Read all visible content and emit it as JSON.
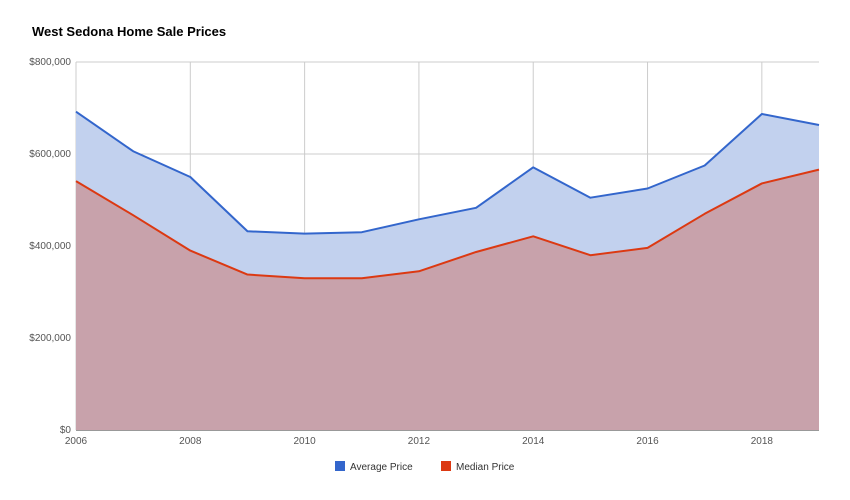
{
  "chart_data": {
    "type": "area",
    "title": "West Sedona Home Sale Prices",
    "xlabel": "",
    "ylabel": "",
    "x": [
      2006,
      2007,
      2008,
      2009,
      2010,
      2011,
      2012,
      2013,
      2014,
      2015,
      2016,
      2017,
      2018,
      2019
    ],
    "xlim": [
      2006,
      2019
    ],
    "ylim": [
      0,
      800000
    ],
    "x_ticks": [
      "2006",
      "2008",
      "2010",
      "2012",
      "2014",
      "2016",
      "2018"
    ],
    "y_ticks": [
      {
        "value": 0,
        "label": "$0"
      },
      {
        "value": 200000,
        "label": "$200,000"
      },
      {
        "value": 400000,
        "label": "$400,000"
      },
      {
        "value": 600000,
        "label": "$600,000"
      },
      {
        "value": 800000,
        "label": "$800,000"
      }
    ],
    "grid": true,
    "legend_position": "bottom",
    "series": [
      {
        "name": "Average Price",
        "color": "#3366cc",
        "fill": "#c2d1ee",
        "values": [
          692000,
          606000,
          550000,
          432000,
          427000,
          430000,
          458000,
          483000,
          571000,
          505000,
          525000,
          575000,
          687000,
          663000
        ]
      },
      {
        "name": "Median Price",
        "color": "#dc3912",
        "fill": "#c8a2ab",
        "values": [
          541000,
          467000,
          390000,
          338000,
          330000,
          330000,
          345000,
          387000,
          421000,
          380000,
          396000,
          470000,
          536000,
          566000
        ]
      }
    ]
  }
}
